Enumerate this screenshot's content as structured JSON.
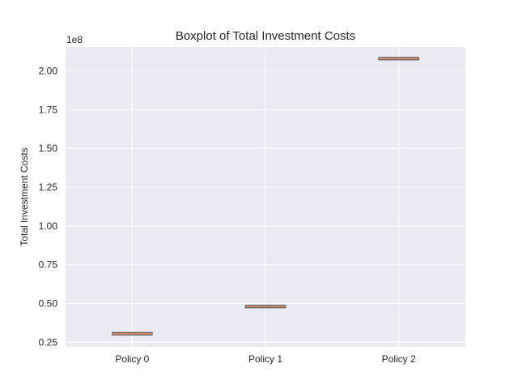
{
  "chart_data": {
    "type": "boxplot",
    "title": "Boxplot of Total Investment Costs",
    "ylabel": "Total Investment Costs",
    "xlabel": "",
    "offset_label": "1e8",
    "categories": [
      "Policy 0",
      "Policy 1",
      "Policy 2"
    ],
    "values": [
      30500000,
      48000000,
      208000000
    ],
    "ylim": [
      22000000,
      215500000
    ],
    "yticks": [
      0.25,
      0.5,
      0.75,
      1.0,
      1.25,
      1.5,
      1.75,
      2.0
    ],
    "ytick_labels": [
      "0.25",
      "0.50",
      "0.75",
      "1.00",
      "1.25",
      "1.50",
      "1.75",
      "2.00"
    ],
    "ytick_multiplier": 100000000,
    "grid": true,
    "colors": {
      "background": "#eaeaf2",
      "grid": "#ffffff",
      "median": "#dd8452",
      "box_edge": "#3a3a3a",
      "text": "#262626"
    }
  }
}
